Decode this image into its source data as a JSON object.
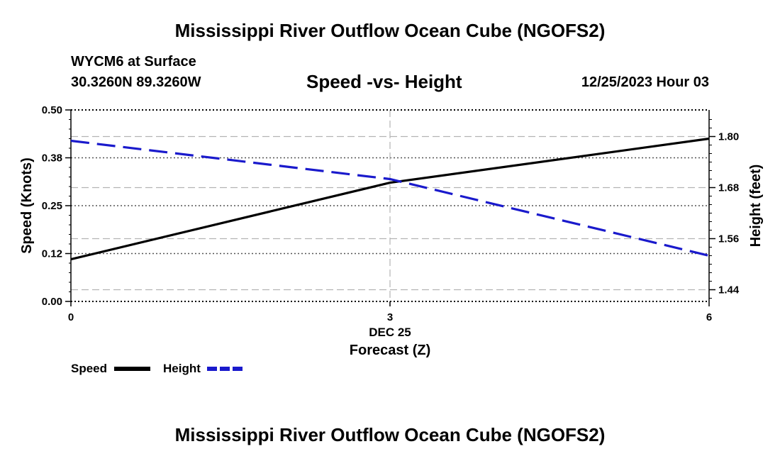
{
  "header": {
    "title": "Mississippi River Outflow Ocean Cube (NGOFS2)",
    "station": "WYCM6 at Surface",
    "coords": "30.3260N  89.3260W",
    "date": "12/25/2023 Hour 03"
  },
  "footer": {
    "title": "Mississippi River Outflow Ocean Cube (NGOFS2)"
  },
  "colors": {
    "speed": "#000000",
    "height": "#1a1acc",
    "grid": "#b4b4b4"
  },
  "chart_data": {
    "type": "line",
    "title": "Speed -vs- Height",
    "xlabel": "Forecast (Z)",
    "ylabel": "Speed (Knots)",
    "y2label": "Height (feet)",
    "x": [
      0,
      3,
      6
    ],
    "x_tick_labels": [
      "0",
      "3",
      "6"
    ],
    "x_date_label": "DEC 25",
    "xlim": [
      0,
      6
    ],
    "ylim": [
      0,
      0.5
    ],
    "y_ticks": [
      0.0,
      0.125,
      0.25,
      0.375,
      0.5
    ],
    "y_tick_labels": [
      "0.00",
      "0.12",
      "0.25",
      "0.38",
      "0.50"
    ],
    "y2lim": [
      1.4125,
      1.8625
    ],
    "y2_ticks": [
      1.44,
      1.56,
      1.68,
      1.8
    ],
    "y2_tick_labels": [
      "1.44",
      "1.56",
      "1.68",
      "1.80"
    ],
    "series": [
      {
        "name": "Speed",
        "axis": "left",
        "style": "solid",
        "values": [
          0.11,
          0.31,
          0.425
        ]
      },
      {
        "name": "Height",
        "axis": "right",
        "style": "dashed",
        "values": [
          1.79,
          1.7,
          1.52
        ]
      }
    ],
    "legend": [
      "Speed",
      "Height"
    ]
  }
}
